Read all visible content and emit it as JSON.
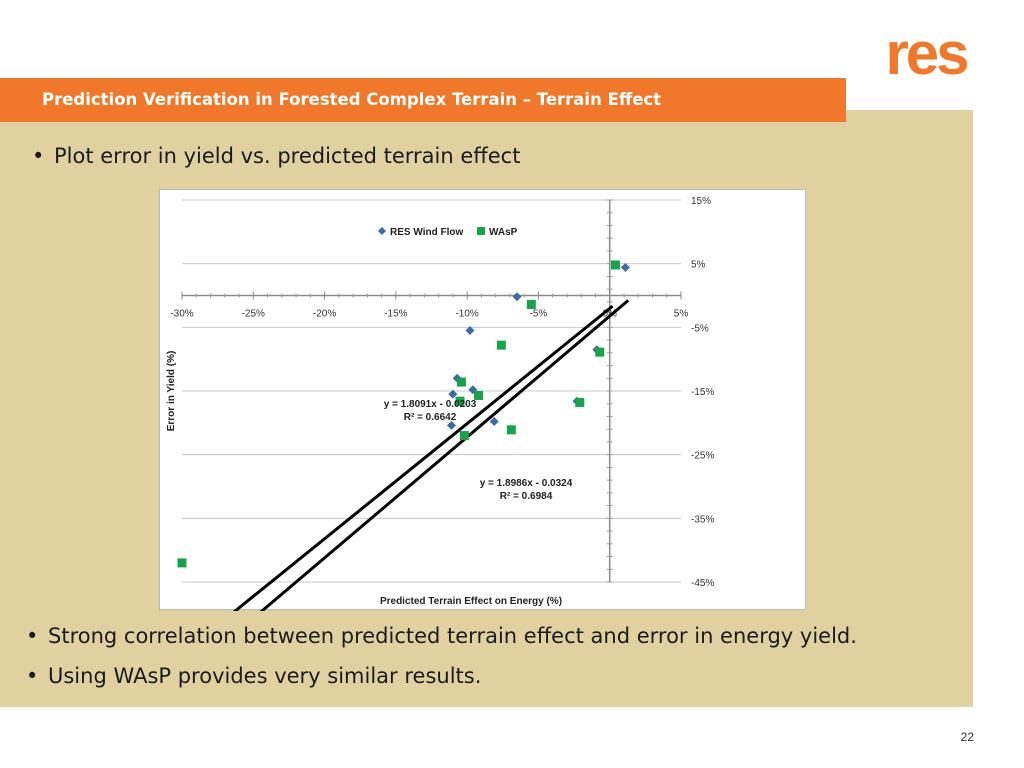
{
  "slide": {
    "title": "Prediction Verification in Forested Complex Terrain – Terrain Effect",
    "logo_text": "res",
    "bullets": [
      "Plot error in yield vs. predicted terrain effect",
      "Strong correlation between predicted terrain effect and error in energy yield.",
      "Using WAsP provides very similar results."
    ],
    "bullet_symbol": "•",
    "page_number": "22"
  },
  "colors": {
    "title_bar": "#f0782a",
    "content_bg": "#e1d1a0",
    "res_series": "#3f6aa3",
    "wasp_series": "#16a34a",
    "logo": "#f0782a"
  },
  "chart_data": {
    "type": "scatter",
    "title": "",
    "xlabel": "Predicted Terrain Effect on Energy (%)",
    "ylabel": "Error in Yield (%)",
    "xlim": [
      -30,
      5
    ],
    "ylim": [
      -45,
      15
    ],
    "x_ticks": [
      -30,
      -25,
      -20,
      -15,
      -10,
      -5,
      0,
      5
    ],
    "x_tick_labels": [
      "-30%",
      "-25%",
      "-20%",
      "-15%",
      "-10%",
      "-5%",
      "0%",
      "5%"
    ],
    "y_ticks": [
      15,
      5,
      -5,
      -15,
      -25,
      -35,
      -45
    ],
    "y_tick_labels": [
      "15%",
      "5%",
      "-5%",
      "-15%",
      "-25%",
      "-35%",
      "-45%"
    ],
    "grid": true,
    "legend_position": "top-center",
    "series": [
      {
        "name": "RES Wind Flow",
        "marker": "diamond",
        "color": "#3f6aa3",
        "points": [
          [
            -30.0,
            -42.0
          ],
          [
            -9.8,
            -5.5
          ],
          [
            -10.7,
            -13.0
          ],
          [
            -11.0,
            -15.5
          ],
          [
            -9.6,
            -14.8
          ],
          [
            -11.1,
            -20.4
          ],
          [
            -8.1,
            -19.8
          ],
          [
            -6.5,
            -0.2
          ],
          [
            -2.3,
            -16.6
          ],
          [
            -0.9,
            -8.5
          ],
          [
            1.1,
            4.4
          ]
        ],
        "trendline": {
          "label": "y = 1.8091x - 0.0203",
          "r2_label": "R² = 0.6642",
          "slope": 1.8091,
          "intercept": -2.03,
          "x_range": [
            -29.5,
            0.2
          ]
        }
      },
      {
        "name": "WAsP",
        "marker": "square",
        "color": "#16a34a",
        "points": [
          [
            -30.0,
            -42.0
          ],
          [
            -7.6,
            -7.8
          ],
          [
            -5.5,
            -1.4
          ],
          [
            -10.4,
            -13.6
          ],
          [
            -10.5,
            -16.6
          ],
          [
            -9.2,
            -15.7
          ],
          [
            -10.2,
            -22.0
          ],
          [
            -6.9,
            -21.1
          ],
          [
            -2.1,
            -16.8
          ],
          [
            -0.7,
            -8.9
          ],
          [
            0.4,
            4.8
          ]
        ],
        "trendline": {
          "label": "y = 1.8986x - 0.0324",
          "r2_label": "R² = 0.6984",
          "slope": 1.8986,
          "intercept": -3.24,
          "x_range": [
            -29.5,
            1.3
          ]
        }
      }
    ]
  }
}
